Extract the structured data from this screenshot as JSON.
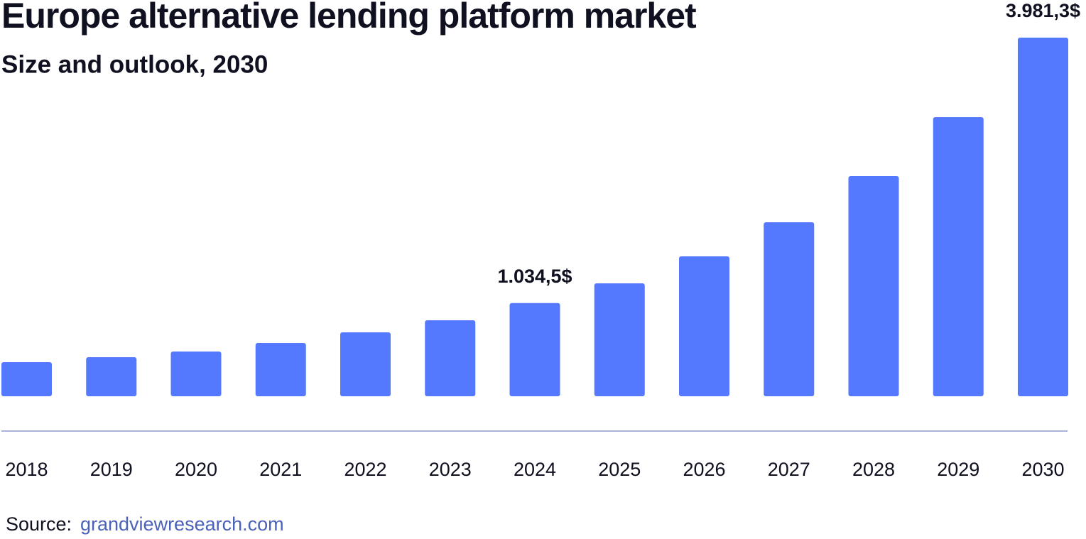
{
  "chart_data": {
    "type": "bar",
    "title": "Europe alternative lending platform market",
    "subtitle": "Size and outlook, 2030",
    "categories": [
      "2018",
      "2019",
      "2020",
      "2021",
      "2022",
      "2023",
      "2024",
      "2025",
      "2026",
      "2027",
      "2028",
      "2029",
      "2030"
    ],
    "values": [
      378,
      434,
      497,
      591,
      710,
      844,
      1034.5,
      1254,
      1553,
      1932,
      2444,
      3098,
      3981.3
    ],
    "value_labels": [
      null,
      null,
      null,
      null,
      null,
      null,
      "1.034,5$",
      null,
      null,
      null,
      null,
      null,
      "3.981,3$"
    ],
    "color": "#5479ff",
    "source_label": "Source:",
    "source": "grandviewresearch.com"
  }
}
